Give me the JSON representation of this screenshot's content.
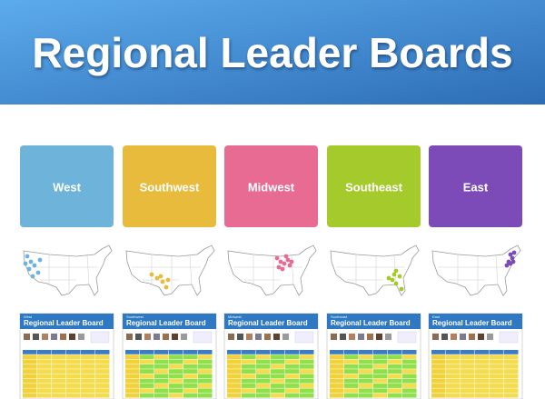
{
  "header": {
    "title": "Regional Leader Boards"
  },
  "regions": [
    {
      "label": "West",
      "color": "#6db3da"
    },
    {
      "label": "Southwest",
      "color": "#e8bb3c"
    },
    {
      "label": "Midwest",
      "color": "#e86b94"
    },
    {
      "label": "Southeast",
      "color": "#a4ca2c"
    },
    {
      "label": "East",
      "color": "#7c4bb8"
    }
  ],
  "thumbnail_title": "Regional Leader Board"
}
